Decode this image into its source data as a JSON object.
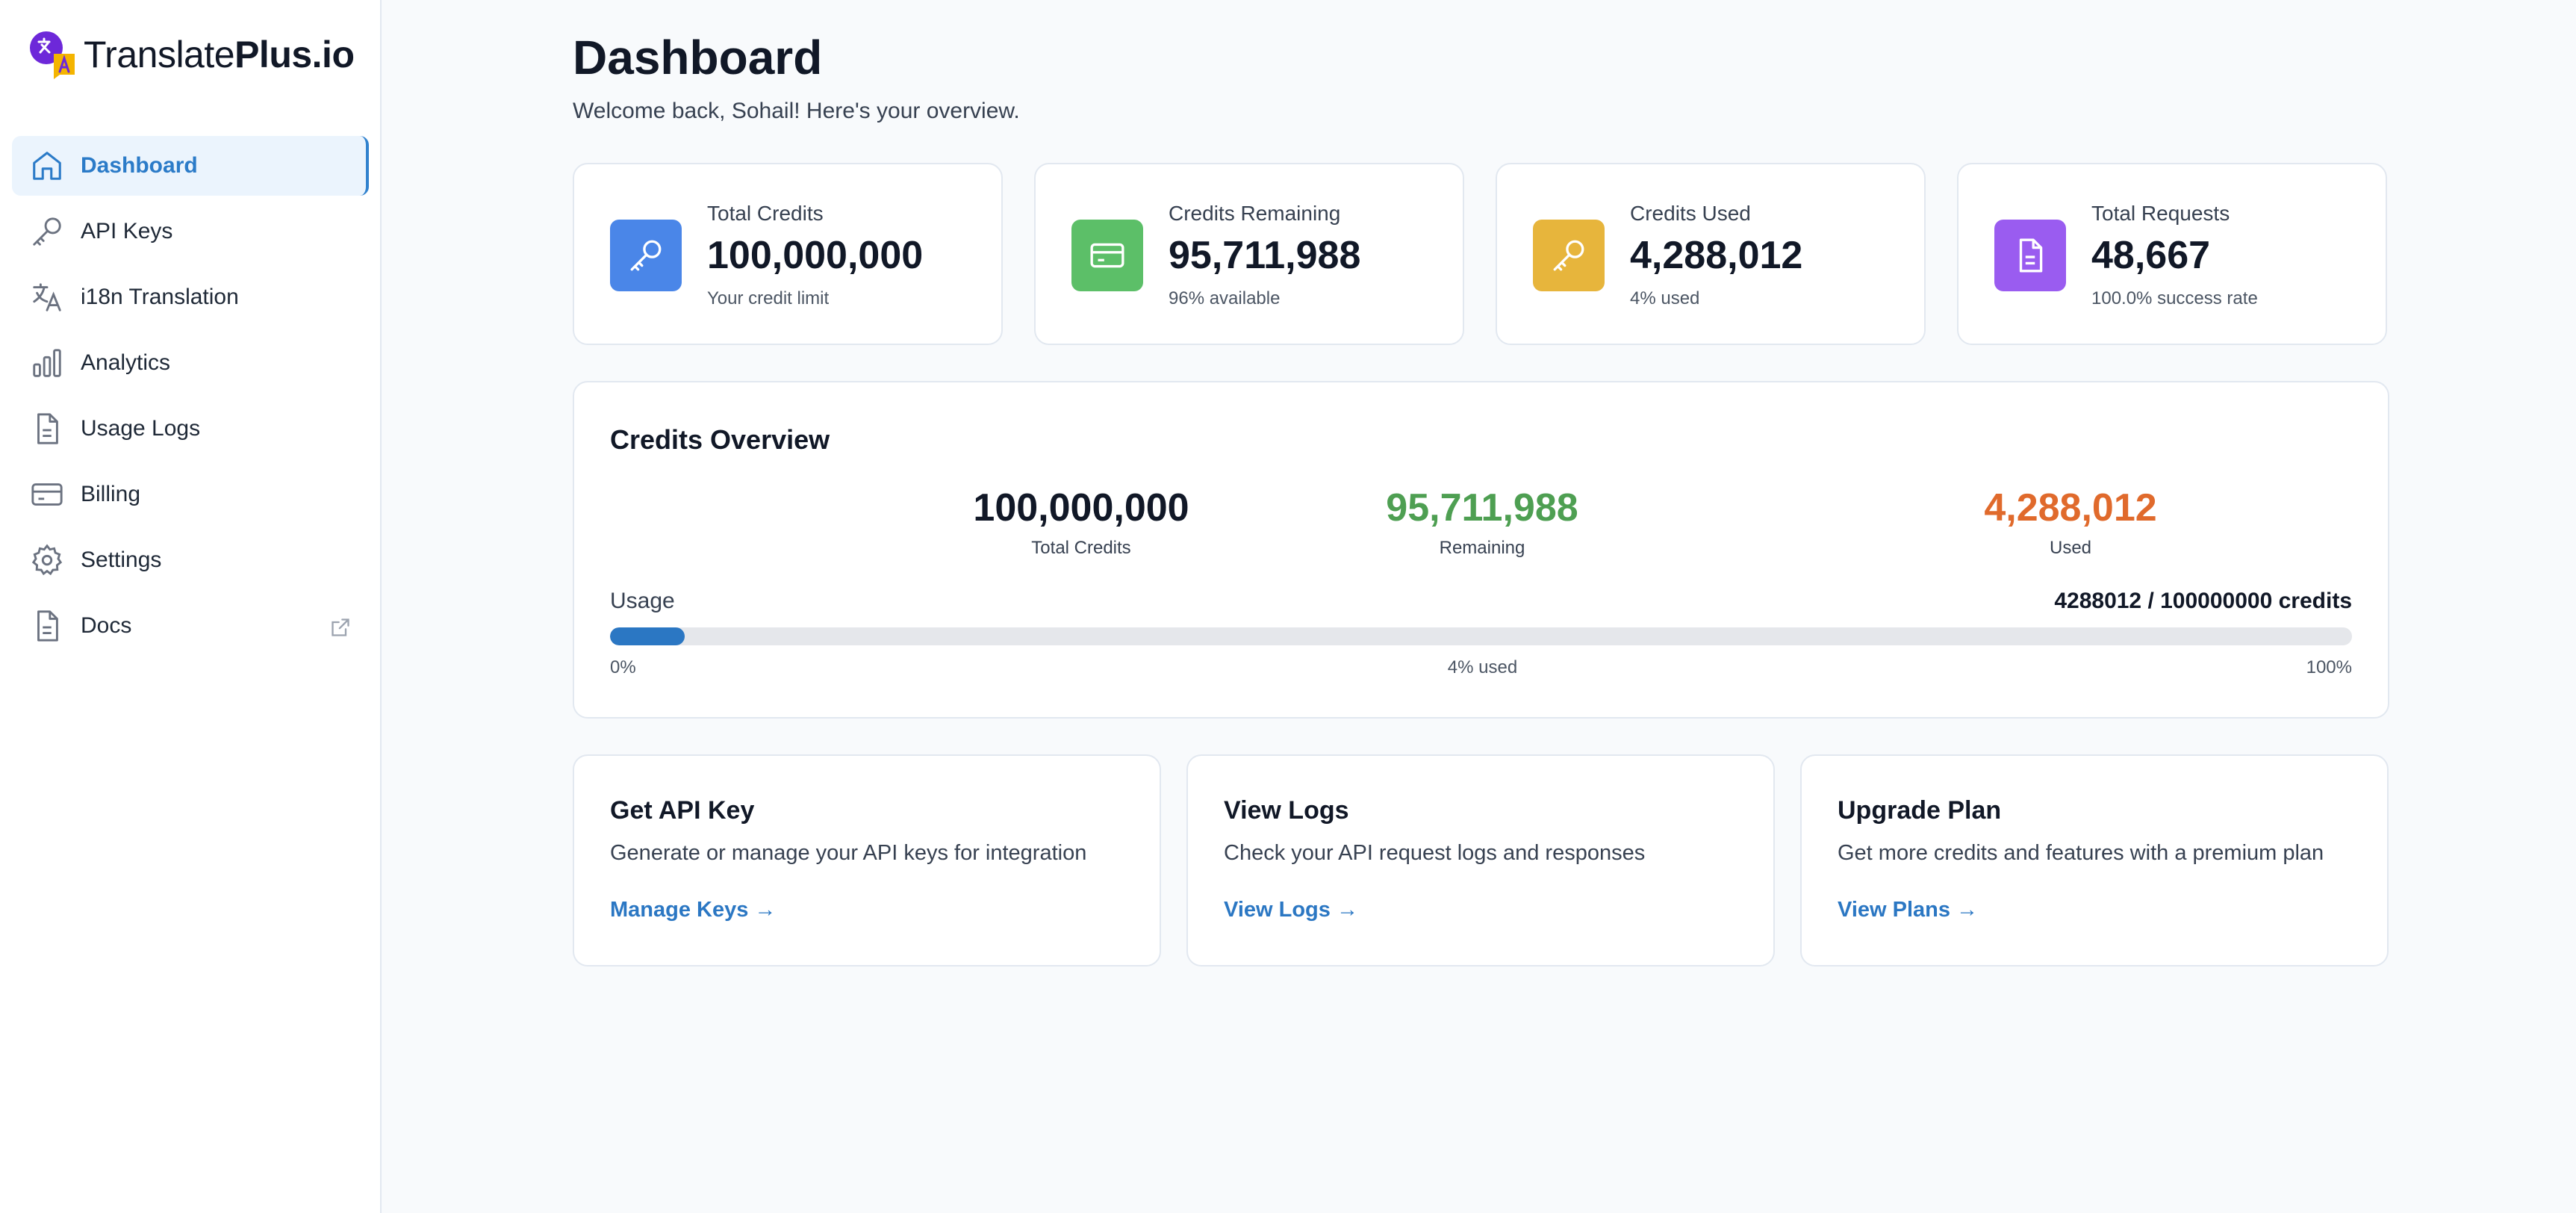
{
  "brand": {
    "name_regular": "Translate",
    "name_bold": "Plus.io"
  },
  "sidebar": {
    "items": [
      {
        "label": "Dashboard",
        "icon": "home-icon",
        "active": true
      },
      {
        "label": "API Keys",
        "icon": "key-icon"
      },
      {
        "label": "i18n Translation",
        "icon": "translate-icon"
      },
      {
        "label": "Analytics",
        "icon": "bar-chart-icon"
      },
      {
        "label": "Usage Logs",
        "icon": "file-icon"
      },
      {
        "label": "Billing",
        "icon": "credit-card-icon"
      },
      {
        "label": "Settings",
        "icon": "gear-icon"
      },
      {
        "label": "Docs",
        "icon": "file-icon",
        "external": true
      }
    ]
  },
  "header": {
    "title": "Dashboard",
    "subtitle": "Welcome back, Sohail! Here's your overview."
  },
  "stats": [
    {
      "label": "Total Credits",
      "value": "100,000,000",
      "sub": "Your credit limit",
      "icon": "key-icon",
      "color": "#4a86e8"
    },
    {
      "label": "Credits Remaining",
      "value": "95,711,988",
      "sub": "96% available",
      "icon": "credit-card-icon",
      "color": "#5cbf68"
    },
    {
      "label": "Credits Used",
      "value": "4,288,012",
      "sub": "4% used",
      "icon": "key-icon",
      "color": "#e7b53c"
    },
    {
      "label": "Total Requests",
      "value": "48,667",
      "sub": "100.0% success rate",
      "icon": "document-icon",
      "color": "#9a5cf0"
    }
  ],
  "overview": {
    "title": "Credits Overview",
    "total": {
      "value": "100,000,000",
      "label": "Total Credits",
      "color": "#111827"
    },
    "remaining": {
      "value": "95,711,988",
      "label": "Remaining",
      "color": "#4e9f52"
    },
    "used": {
      "value": "4,288,012",
      "label": "Used",
      "color": "#e06a2c"
    },
    "usage_label": "Usage",
    "usage_count": "4288012 / 100000000 credits",
    "progress_fraction": 0.043,
    "min_label": "0%",
    "mid_label": "4% used",
    "max_label": "100%"
  },
  "actions": [
    {
      "title": "Get API Key",
      "desc": "Generate or manage your API keys for integration",
      "link": "Manage Keys →"
    },
    {
      "title": "View Logs",
      "desc": "Check your API request logs and responses",
      "link": "View Logs →"
    },
    {
      "title": "Upgrade Plan",
      "desc": "Get more credits and features with a premium plan",
      "link": "View Plans →"
    }
  ]
}
